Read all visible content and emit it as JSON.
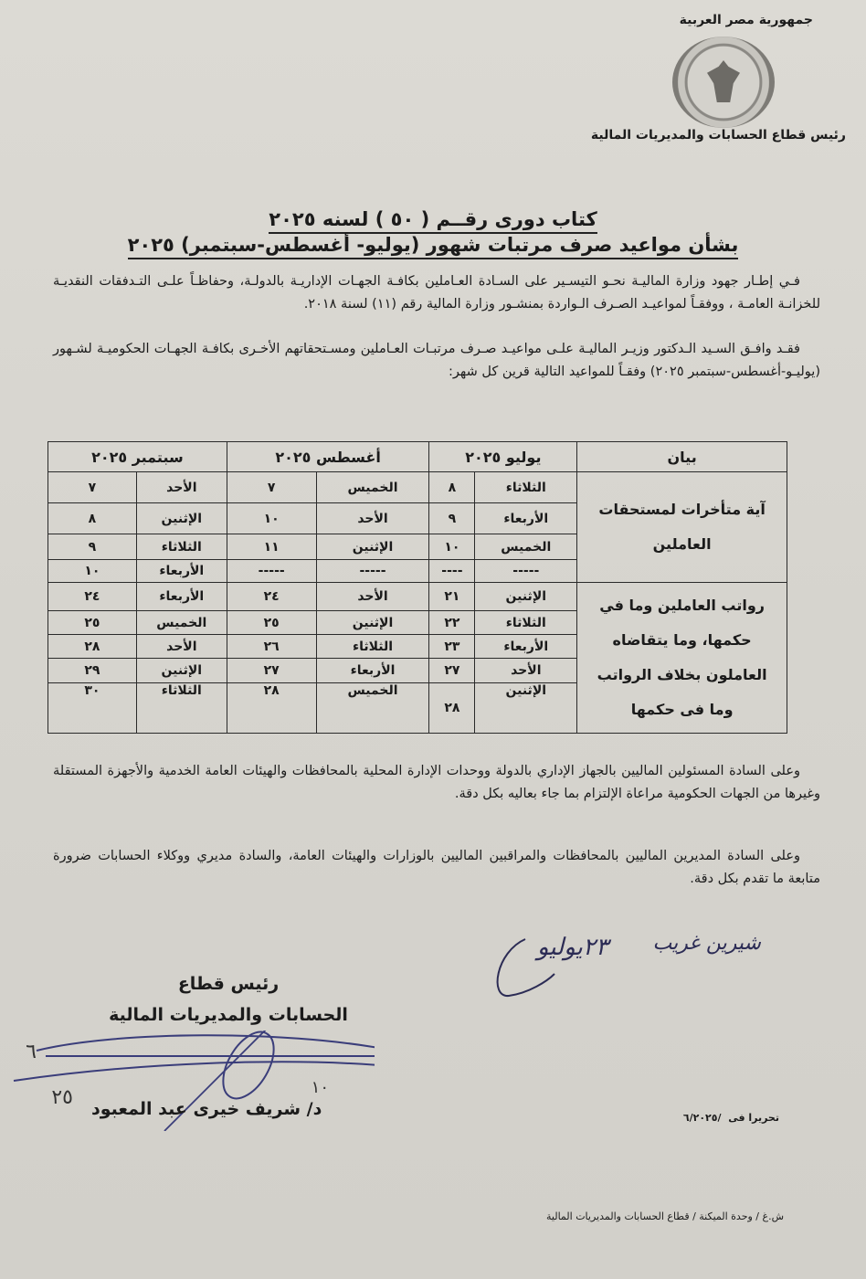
{
  "letterhead": {
    "country": "جمهورية مصر العربية",
    "department": "رئيس قطاع الحسابات والمديريات المالية",
    "seal": "ministry-of-finance-seal"
  },
  "title": {
    "line1": "كتاب دورى رقــم ( ٥٠ ) لسنه ٢٠٢٥",
    "line2": "بشأن مواعيد صرف مرتبات شهور (يوليو- أغسطس-سبتمبر) ٢٠٢٥"
  },
  "intro": {
    "paragraph1": "فـي إطـار جهود وزارة الماليـة نحـو التيسـير على السـادة العـاملين بكافـة الجهـات الإداريـة بالدولـة، وحفاظـاً علـى التـدفقات النقديـة للخزانـة العامـة ، ووفقـاً لمواعيـد الصـرف الـواردة بمنشـور وزارة المالية رقم (١١) لسنة ٢٠١٨.",
    "paragraph2": "فقـد وافـق السـيد الـدكتور وزيـر الماليـة علـى مواعيـد صـرف مرتبـات العـاملين ومسـتحقاتهم الأخـرى بكافـة الجهـات الحكوميـة لشـهور (يوليـو-أغسطس-سبتمبر ٢٠٢٥) وفقـاً للمواعيد التالية قرين كل شهر:"
  },
  "table": {
    "headers": {
      "description": "بيان",
      "july": "يوليو ٢٠٢٥",
      "august": "أغسطس ٢٠٢٥",
      "september": "سبتمبر ٢٠٢٥"
    },
    "groups": [
      {
        "description": "آية متأخرات لمستحقات العاملين",
        "rows": [
          {
            "july_day": "الثلاثاء",
            "july_date": "٨",
            "aug_day": "الخميس",
            "aug_date": "٧",
            "sep_day": "الأحد",
            "sep_date": "٧"
          },
          {
            "july_day": "الأربعاء",
            "july_date": "٩",
            "aug_day": "الأحد",
            "aug_date": "١٠",
            "sep_day": "الإثنين",
            "sep_date": "٨"
          },
          {
            "july_day": "الخميس",
            "july_date": "١٠",
            "aug_day": "الإثنين",
            "aug_date": "١١",
            "sep_day": "الثلاثاء",
            "sep_date": "٩"
          },
          {
            "july_day": "-----",
            "july_date": "----",
            "aug_day": "-----",
            "aug_date": "-----",
            "sep_day": "الأربعاء",
            "sep_date": "١٠"
          }
        ]
      },
      {
        "description": "رواتب العاملين وما في حكمها، وما يتقاضاه العاملون بخلاف الرواتب وما فى حكمها",
        "rows": [
          {
            "july_day": "الإثنين",
            "july_date": "٢١",
            "aug_day": "الأحد",
            "aug_date": "٢٤",
            "sep_day": "الأربعاء",
            "sep_date": "٢٤"
          },
          {
            "july_day": "الثلاثاء",
            "july_date": "٢٢",
            "aug_day": "الإثنين",
            "aug_date": "٢٥",
            "sep_day": "الخميس",
            "sep_date": "٢٥"
          },
          {
            "july_day": "الأربعاء",
            "july_date": "٢٣",
            "aug_day": "الثلاثاء",
            "aug_date": "٢٦",
            "sep_day": "الأحد",
            "sep_date": "٢٨"
          },
          {
            "july_day": "الأحد",
            "july_date": "٢٧",
            "aug_day": "الأربعاء",
            "aug_date": "٢٧",
            "sep_day": "الإثنين",
            "sep_date": "٢٩"
          },
          {
            "july_day": "الإثنين",
            "july_date": "٢٨",
            "aug_day": "الخميس",
            "aug_date": "٢٨",
            "sep_day": "الثلاثاء",
            "sep_date": "٣٠"
          }
        ]
      }
    ]
  },
  "closing": {
    "paragraph1": "وعلى السادة المسئولين الماليين بالجهاز الإداري بالدولة ووحدات الإدارة المحلية بالمحافظات والهيئات العامة الخدمية والأجهزة المستقلة وغيرها من الجهات الحكومية مراعاة الإلتزام بما جاء بعاليه بكل دقة.",
    "paragraph2": "وعلى السادة المديرين الماليين بالمحافظات والمراقبين الماليين بالوزارات والهيئات العامة، والسادة مديري ووكلاء الحسابات ضرورة متابعة ما تقدم بكل دقة."
  },
  "handwriting": {
    "note": "شيرين غريب",
    "date_note": "٢٣يوليو",
    "sig_numbers": [
      "٦",
      "٢٥",
      "١٠"
    ]
  },
  "signature": {
    "title_line1": "رئيس قطاع",
    "title_line2": "الحسابات والمديريات المالية",
    "name": "د/ شريف خيرى عبد المعبود"
  },
  "date_line": {
    "label": "تحريرا فى",
    "value": "/٦/٢٠٢٥"
  },
  "footer": "ش.غ / وحدة الميكنة / قطاع الحسابات والمديريات المالية"
}
